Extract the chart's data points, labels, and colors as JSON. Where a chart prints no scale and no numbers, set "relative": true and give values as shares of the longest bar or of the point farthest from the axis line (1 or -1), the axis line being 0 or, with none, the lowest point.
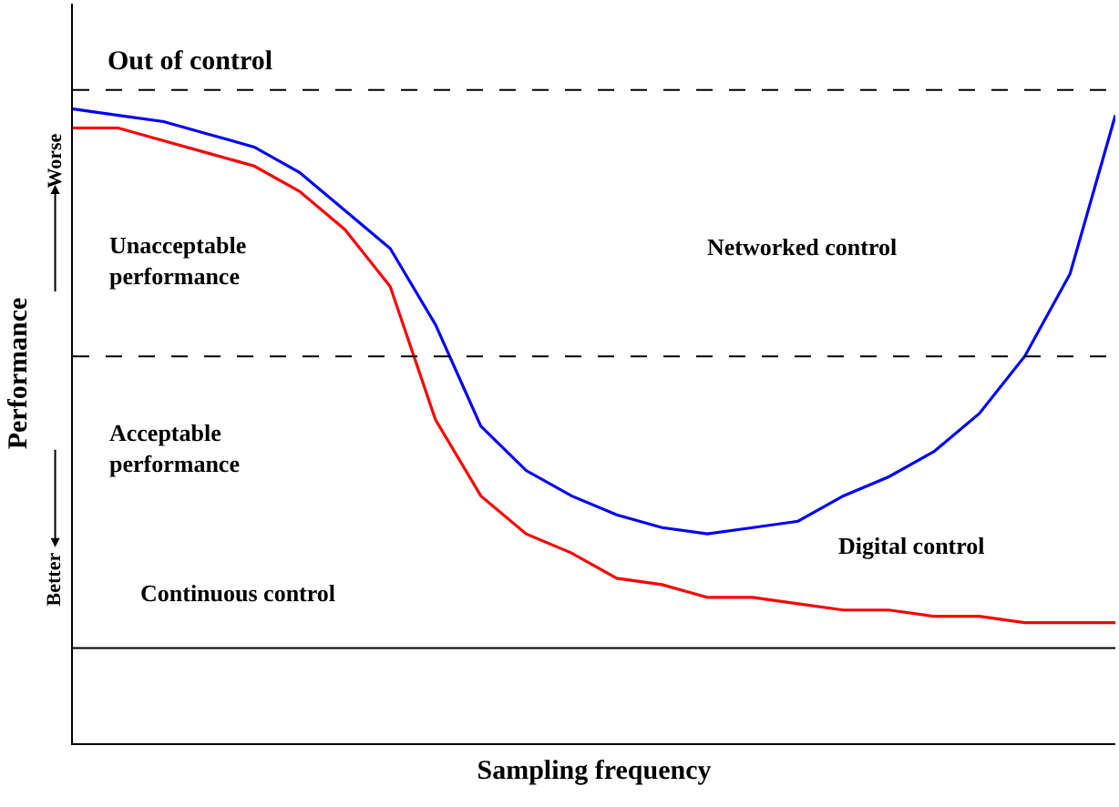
{
  "chart_data": {
    "type": "line",
    "relative": true,
    "xlabel": "Sampling frequency",
    "ylabel": "Performance",
    "categories": [
      null,
      null,
      null,
      null,
      null,
      null,
      null,
      null,
      null,
      null,
      null,
      null,
      null,
      null,
      null,
      null,
      null,
      null,
      null,
      null,
      null,
      null,
      null,
      null
    ],
    "series": [
      {
        "color": "#0000ff",
        "values": [
          1.0,
          0.99,
          0.98,
          0.96,
          0.94,
          0.9,
          0.84,
          0.78,
          0.66,
          0.5,
          0.43,
          0.39,
          0.36,
          0.34,
          0.33,
          0.34,
          0.35,
          0.39,
          0.42,
          0.46,
          0.52,
          0.61,
          0.74,
          0.99
        ]
      },
      {
        "color": "#ff0000",
        "values": [
          0.97,
          0.97,
          0.95,
          0.93,
          0.91,
          0.87,
          0.81,
          0.72,
          0.51,
          0.39,
          0.33,
          0.3,
          0.26,
          0.25,
          0.23,
          0.23,
          0.22,
          0.21,
          0.21,
          0.2,
          0.2,
          0.19,
          0.19,
          0.19
        ]
      }
    ],
    "ref_lines": [
      {
        "axis": "y",
        "value": 1.03,
        "color": "#000000",
        "line_style": "dashed"
      },
      {
        "axis": "y",
        "value": 0.61,
        "color": "#000000",
        "line_style": "dashed"
      },
      {
        "axis": "y",
        "value": 0.15,
        "color": "#000000",
        "line_style": "solid"
      }
    ],
    "annotations": [
      "Out of control",
      "Unacceptable\nperformance",
      "Acceptable\nperformance",
      "Continuous control",
      "Worse",
      "Better",
      "Networked control",
      "Digital control"
    ],
    "legend": false,
    "marker": "none",
    "line_style": "solid"
  }
}
